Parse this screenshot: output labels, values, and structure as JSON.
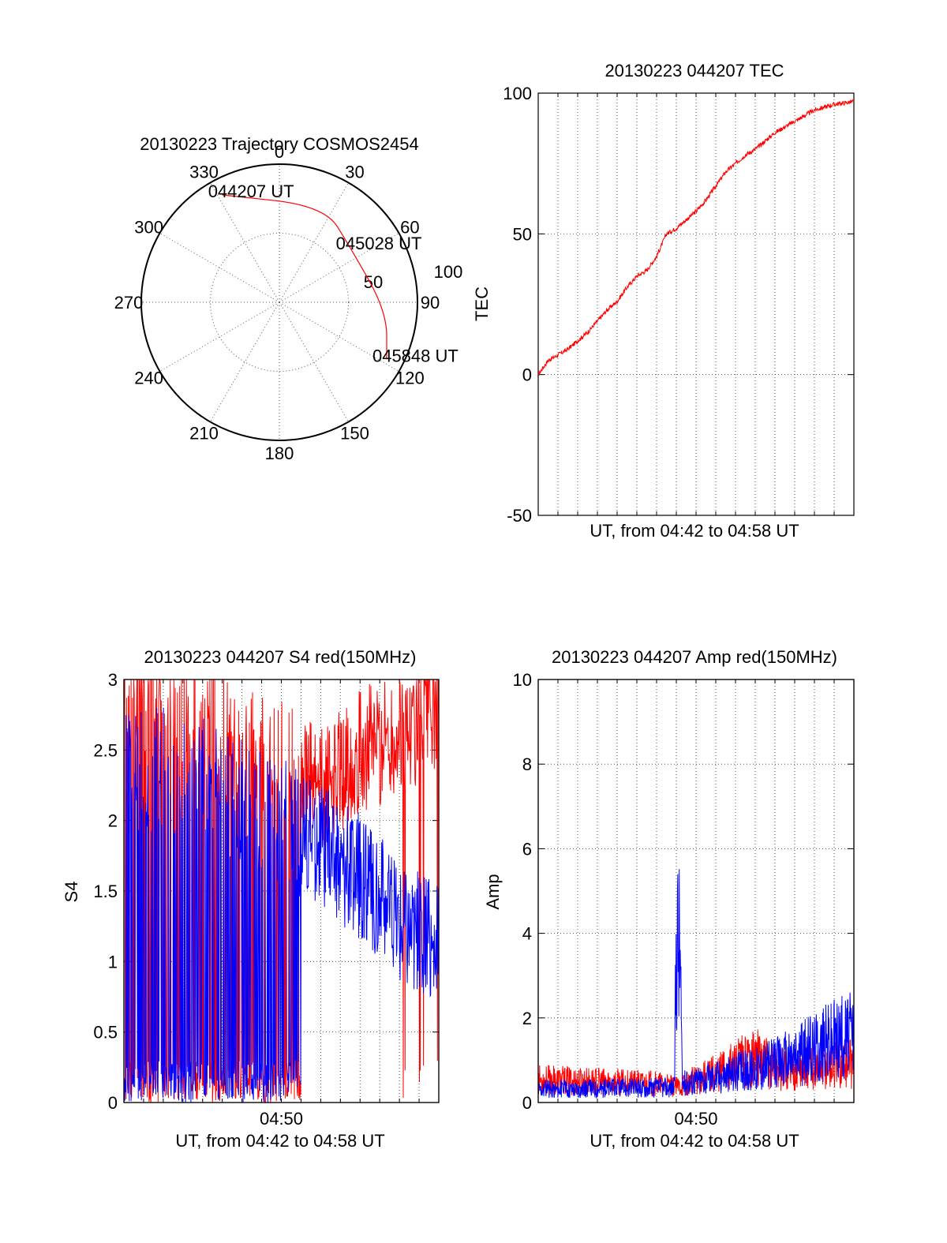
{
  "chart_data": [
    {
      "type": "polar",
      "title": "20130223 Trajectory COSMOS2454",
      "azimuth_labels": [
        "0",
        "30",
        "60",
        "90",
        "120",
        "150",
        "180",
        "210",
        "240",
        "270",
        "300",
        "330"
      ],
      "radial_labels": [
        "50",
        "100"
      ],
      "trajectory": {
        "color": "#ff0000",
        "points": [
          {
            "az": 332,
            "r": 88,
            "label": "044207 UT"
          },
          {
            "az": 25,
            "r": 77
          },
          {
            "az": 52,
            "r": 65,
            "label": "045028 UT"
          },
          {
            "az": 95,
            "r": 78
          },
          {
            "az": 118,
            "r": 88,
            "label": "045848 UT"
          }
        ]
      }
    },
    {
      "type": "line",
      "title": "20130223 044207 TEC",
      "xlabel": "UT, from 04:42 to 04:58 UT",
      "ylabel": "TEC",
      "ylim": [
        -50,
        100
      ],
      "yticks": [
        "-50",
        "0",
        "50",
        "100"
      ],
      "xlim_minutes": [
        0,
        16
      ],
      "grid": true,
      "series": [
        {
          "color": "#ff0000",
          "points": [
            [
              0,
              0
            ],
            [
              0.5,
              5
            ],
            [
              1,
              7
            ],
            [
              1.5,
              9
            ],
            [
              2,
              12
            ],
            [
              2.5,
              15
            ],
            [
              3,
              19
            ],
            [
              3.5,
              23
            ],
            [
              4,
              26
            ],
            [
              4.5,
              31
            ],
            [
              5,
              35
            ],
            [
              5.5,
              37
            ],
            [
              6,
              42
            ],
            [
              6.5,
              50
            ],
            [
              7,
              52
            ],
            [
              7.5,
              55
            ],
            [
              8,
              58
            ],
            [
              8.5,
              62
            ],
            [
              9,
              67
            ],
            [
              9.5,
              72
            ],
            [
              10,
              75
            ],
            [
              10.5,
              78
            ],
            [
              11,
              80
            ],
            [
              11.5,
              83
            ],
            [
              12,
              86
            ],
            [
              12.5,
              88
            ],
            [
              13,
              90
            ],
            [
              13.5,
              92
            ],
            [
              14,
              94
            ],
            [
              15,
              96
            ],
            [
              16,
              97
            ]
          ]
        }
      ]
    },
    {
      "type": "line",
      "title": "20130223 044207 S4 red(150MHz)",
      "xlabel": "UT, from 04:42 to 04:58 UT",
      "ylabel": "S4",
      "ylim": [
        0,
        3
      ],
      "yticks": [
        "0",
        "0.5",
        "1",
        "1.5",
        "2",
        "2.5",
        "3"
      ],
      "xticks": [
        "04:50"
      ],
      "xlim_minutes": [
        0,
        16
      ],
      "grid": true,
      "series": [
        {
          "color": "#ff0000",
          "profile": [
            [
              0,
              3
            ],
            [
              4,
              2.7
            ],
            [
              8,
              2.4
            ],
            [
              10,
              2.2
            ],
            [
              12,
              2.5
            ],
            [
              14,
              2.6
            ],
            [
              16,
              2.8
            ]
          ]
        },
        {
          "color": "#0000ff",
          "profile": [
            [
              0,
              2.4
            ],
            [
              4,
              2.3
            ],
            [
              8,
              2.0
            ],
            [
              10,
              1.8
            ],
            [
              12,
              1.6
            ],
            [
              14,
              1.3
            ],
            [
              16,
              1.1
            ]
          ]
        }
      ]
    },
    {
      "type": "line",
      "title": "20130223 044207 Amp red(150MHz)",
      "xlabel": "UT, from 04:42 to 04:58 UT",
      "ylabel": "Amp",
      "ylim": [
        0,
        10
      ],
      "yticks": [
        "0",
        "2",
        "4",
        "6",
        "8",
        "10"
      ],
      "xticks": [
        "04:50"
      ],
      "xlim_minutes": [
        0,
        16
      ],
      "grid": true,
      "series": [
        {
          "color": "#ff0000",
          "profile": [
            [
              0,
              0.6
            ],
            [
              6,
              0.5
            ],
            [
              7,
              0.4
            ],
            [
              11,
              1.2
            ],
            [
              12,
              0.9
            ],
            [
              16,
              1.0
            ]
          ]
        },
        {
          "color": "#0000ff",
          "profile": [
            [
              0,
              0.35
            ],
            [
              6.9,
              0.4
            ],
            [
              7.0,
              5.3
            ],
            [
              7.2,
              4.8
            ],
            [
              7.3,
              0.5
            ],
            [
              11,
              0.9
            ],
            [
              13,
              1.2
            ],
            [
              15,
              1.7
            ],
            [
              16,
              1.8
            ]
          ]
        }
      ]
    }
  ]
}
